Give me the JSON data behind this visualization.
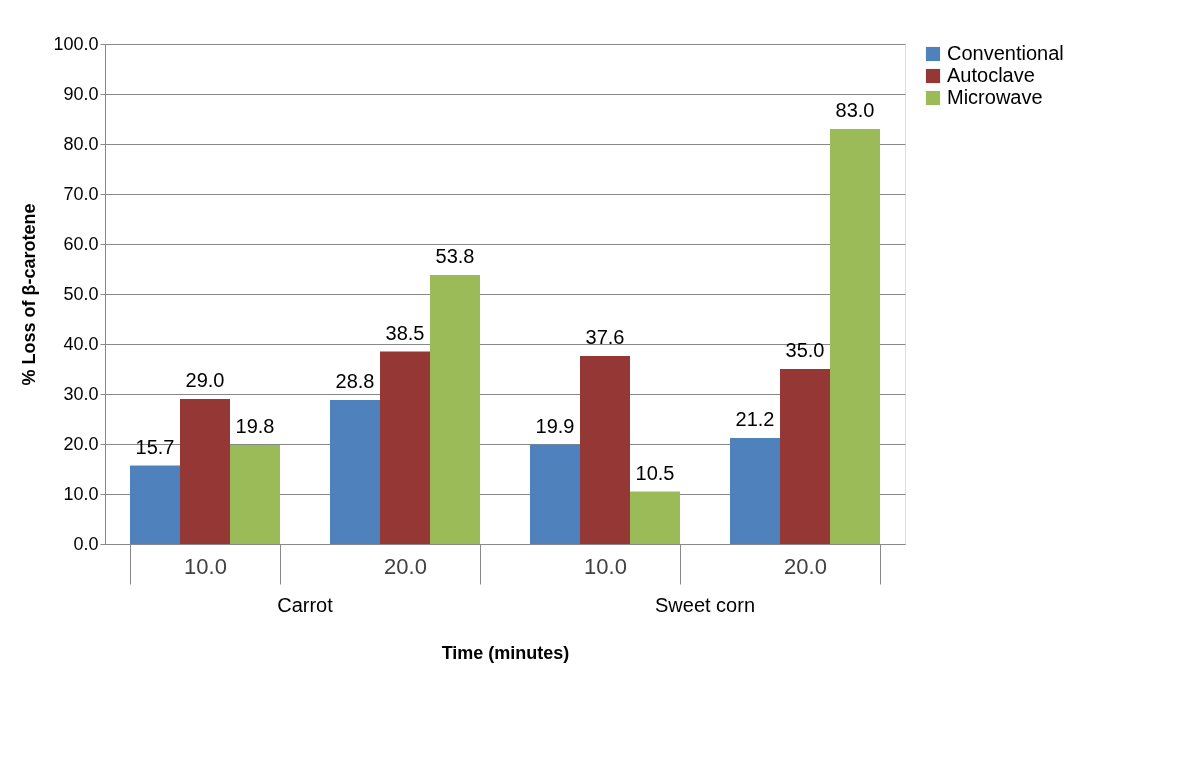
{
  "chart_data": {
    "type": "bar",
    "xlabel": "Time (minutes)",
    "ylabel": "% Loss of β-carotene",
    "categories": [
      "10.0",
      "20.0",
      "10.0",
      "20.0"
    ],
    "series": [
      {
        "name": "Conventional",
        "color": "#4f81bd",
        "values": [
          15.7,
          28.8,
          19.9,
          21.2
        ],
        "value_labels": [
          "15.7",
          "28.8",
          "19.9",
          "21.2"
        ]
      },
      {
        "name": "Autoclave",
        "color": "#953735",
        "values": [
          29.0,
          38.5,
          37.6,
          35.0
        ],
        "value_labels": [
          "29.0",
          "38.5",
          "37.6",
          "35.0"
        ]
      },
      {
        "name": "Microwave",
        "color": "#9bbb59",
        "values": [
          19.8,
          53.8,
          10.5,
          83.0
        ],
        "value_labels": [
          "19.8",
          "53.8",
          "10.5",
          "83.0"
        ]
      }
    ],
    "annotations": [
      "Carrot",
      "Sweet corn"
    ],
    "ylim": [
      0,
      100
    ],
    "yticks": [
      {
        "value": 0,
        "label": "0.0"
      },
      {
        "value": 10,
        "label": "10.0"
      },
      {
        "value": 20,
        "label": "20.0"
      },
      {
        "value": 30,
        "label": "30.0"
      },
      {
        "value": 40,
        "label": "40.0"
      },
      {
        "value": 50,
        "label": "50.0"
      },
      {
        "value": 60,
        "label": "60.0"
      },
      {
        "value": 70,
        "label": "70.0"
      },
      {
        "value": 80,
        "label": "80.0"
      },
      {
        "value": 90,
        "label": "90.0"
      },
      {
        "value": 100,
        "label": "100.0"
      }
    ],
    "grid": "y",
    "legend": "right"
  }
}
